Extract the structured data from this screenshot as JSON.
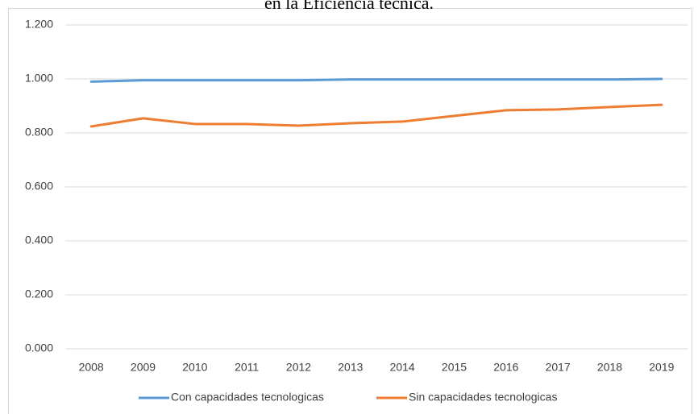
{
  "chart_data": {
    "type": "line",
    "title": "en la Eficiencia técnica.",
    "categories": [
      "2008",
      "2009",
      "2010",
      "2011",
      "2012",
      "2013",
      "2014",
      "2015",
      "2016",
      "2017",
      "2018",
      "2019"
    ],
    "series": [
      {
        "name": "Con capacidades tecnologicas",
        "color": "#5b9bd5",
        "values": [
          0.99,
          0.995,
          0.995,
          0.995,
          0.995,
          0.998,
          0.998,
          0.998,
          0.998,
          0.998,
          0.998,
          1.0
        ]
      },
      {
        "name": "Sin capacidades tecnologicas",
        "color": "#ed7d31",
        "values": [
          0.824,
          0.854,
          0.833,
          0.833,
          0.827,
          0.836,
          0.842,
          0.863,
          0.884,
          0.887,
          0.896,
          0.904
        ]
      }
    ],
    "ylim": [
      0,
      1.2
    ],
    "yticks": [
      {
        "value": 0,
        "label": "0.000"
      },
      {
        "value": 0.2,
        "label": "0.200"
      },
      {
        "value": 0.4,
        "label": "0.400"
      },
      {
        "value": 0.6,
        "label": "0.600"
      },
      {
        "value": 0.8,
        "label": "0.800"
      },
      {
        "value": 1.0,
        "label": "1.000"
      },
      {
        "value": 1.2,
        "label": "1.200"
      }
    ],
    "grid": true,
    "legend": "bottom"
  }
}
